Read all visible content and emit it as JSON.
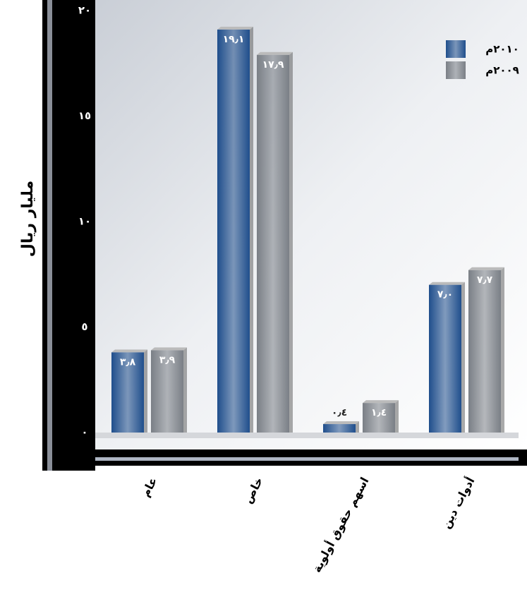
{
  "chart_data": {
    "type": "bar",
    "y_label": "مليار ريال",
    "categories": [
      "عام",
      "خاص",
      "اسهم حقوق أولوية",
      "أدوات دين"
    ],
    "series": [
      {
        "name": "٢٠١٠م",
        "color": "#1f4e8c",
        "values": [
          3.8,
          19.1,
          0.4,
          7.0
        ],
        "value_labels": [
          "٣٫٨",
          "١٩٫١",
          "٠٫٤",
          "٧٫٠"
        ]
      },
      {
        "name": "٢٠٠٩م",
        "color": "#7a7f86",
        "values": [
          3.9,
          17.9,
          1.4,
          7.7
        ],
        "value_labels": [
          "٣٫٩",
          "١٧٫٩",
          "١٫٤",
          "٧٫٧"
        ]
      }
    ],
    "ylim": [
      0,
      20
    ],
    "yticks": [
      {
        "value": 0,
        "label": "٠"
      },
      {
        "value": 5,
        "label": "٥"
      },
      {
        "value": 10,
        "label": "١٠"
      },
      {
        "value": 15,
        "label": "١٥"
      },
      {
        "value": 20,
        "label": "٢٠"
      }
    ],
    "legend": "upper right"
  }
}
